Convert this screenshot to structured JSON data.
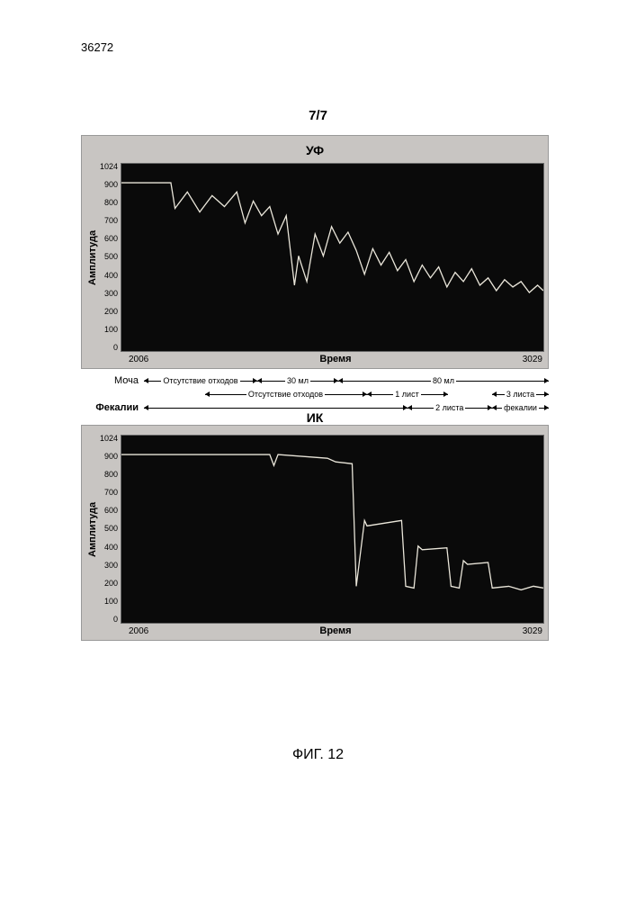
{
  "doc_number": "36272",
  "page_indicator": "7/7",
  "figure_caption": "ФИГ. 12",
  "charts": {
    "top": {
      "title": "УФ",
      "ylabel": "Амплитуда",
      "xlabel": "Время",
      "xmin": "2006",
      "xmax": "3029",
      "ylim": [
        0,
        1024
      ],
      "yticks": [
        1024,
        900,
        800,
        700,
        600,
        500,
        400,
        300,
        200,
        100,
        0
      ],
      "bg_color": "#0a0a0a",
      "panel_bg": "#c8c5c2",
      "trace_color": "#eae6da",
      "trace_width": 1.4,
      "series": [
        [
          0,
          920
        ],
        [
          60,
          920
        ],
        [
          65,
          780
        ],
        [
          80,
          870
        ],
        [
          95,
          760
        ],
        [
          110,
          850
        ],
        [
          125,
          790
        ],
        [
          140,
          870
        ],
        [
          150,
          700
        ],
        [
          160,
          820
        ],
        [
          170,
          740
        ],
        [
          180,
          790
        ],
        [
          190,
          640
        ],
        [
          200,
          740
        ],
        [
          210,
          360
        ],
        [
          215,
          520
        ],
        [
          225,
          380
        ],
        [
          235,
          640
        ],
        [
          245,
          520
        ],
        [
          255,
          680
        ],
        [
          265,
          590
        ],
        [
          275,
          650
        ],
        [
          285,
          550
        ],
        [
          295,
          420
        ],
        [
          305,
          560
        ],
        [
          315,
          470
        ],
        [
          325,
          540
        ],
        [
          335,
          440
        ],
        [
          345,
          500
        ],
        [
          355,
          380
        ],
        [
          365,
          470
        ],
        [
          375,
          400
        ],
        [
          385,
          460
        ],
        [
          395,
          350
        ],
        [
          405,
          430
        ],
        [
          415,
          380
        ],
        [
          425,
          450
        ],
        [
          435,
          360
        ],
        [
          445,
          400
        ],
        [
          455,
          330
        ],
        [
          465,
          390
        ],
        [
          475,
          350
        ],
        [
          485,
          380
        ],
        [
          495,
          320
        ],
        [
          505,
          360
        ],
        [
          512,
          330
        ]
      ]
    },
    "bottom": {
      "title": "ИК",
      "ylabel": "Амплитуда",
      "xlabel": "Время",
      "xmin": "2006",
      "xmax": "3029",
      "ylim": [
        0,
        1024
      ],
      "yticks": [
        1024,
        900,
        800,
        700,
        600,
        500,
        400,
        300,
        200,
        100,
        0
      ],
      "bg_color": "#0a0a0a",
      "panel_bg": "#c8c5c2",
      "trace_color": "#eae6da",
      "trace_width": 1.4,
      "series": [
        [
          0,
          920
        ],
        [
          180,
          920
        ],
        [
          185,
          860
        ],
        [
          190,
          920
        ],
        [
          250,
          900
        ],
        [
          260,
          880
        ],
        [
          280,
          870
        ],
        [
          285,
          200
        ],
        [
          295,
          560
        ],
        [
          298,
          530
        ],
        [
          340,
          560
        ],
        [
          345,
          200
        ],
        [
          355,
          190
        ],
        [
          360,
          420
        ],
        [
          365,
          400
        ],
        [
          395,
          410
        ],
        [
          400,
          200
        ],
        [
          410,
          190
        ],
        [
          415,
          340
        ],
        [
          420,
          320
        ],
        [
          445,
          330
        ],
        [
          450,
          190
        ],
        [
          470,
          200
        ],
        [
          485,
          180
        ],
        [
          500,
          200
        ],
        [
          512,
          190
        ]
      ]
    }
  },
  "annotations": {
    "urine": {
      "label": "Моча",
      "segments": [
        {
          "start": 0,
          "end": 28,
          "text": "Отсутствие отходов"
        },
        {
          "start": 28,
          "end": 48,
          "text": "30 мл"
        },
        {
          "start": 48,
          "end": 100,
          "text": "80 мл"
        }
      ]
    },
    "urine_sub": {
      "label": "",
      "segments": [
        {
          "start": 15,
          "end": 55,
          "text": "Отсутствие отходов"
        },
        {
          "start": 55,
          "end": 75,
          "text": "1 лист"
        },
        {
          "start": 86,
          "end": 100,
          "text": "3 листа"
        }
      ]
    },
    "feces": {
      "label": "Фекалии",
      "label_bold": true,
      "segments": [
        {
          "start": 0,
          "end": 65,
          "text": ""
        },
        {
          "start": 65,
          "end": 86,
          "text": "2 листа"
        },
        {
          "start": 86,
          "end": 100,
          "text": "фекалии"
        }
      ]
    }
  }
}
